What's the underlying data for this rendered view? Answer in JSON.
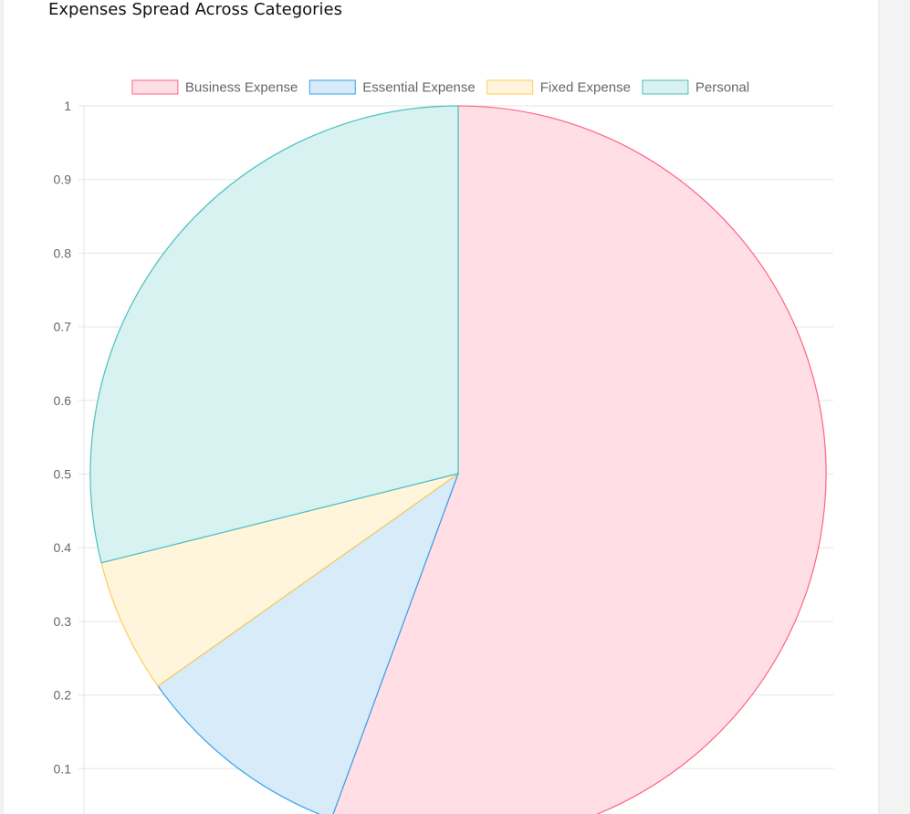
{
  "card": {
    "title": "Expenses Spread Across Categories"
  },
  "chart_data": {
    "type": "pie",
    "title": "Expenses Spread Across Categories",
    "legend_position": "top",
    "grid": true,
    "y_ticks": [
      "0.1",
      "0.2",
      "0.3",
      "0.4",
      "0.5",
      "0.6",
      "0.7",
      "0.8",
      "0.9",
      "1"
    ],
    "ylim": [
      0,
      1
    ],
    "categories": [
      "Business Expense",
      "Essential Expense",
      "Fixed Expense",
      "Personal"
    ],
    "values": [
      55.6,
      9.6,
      5.9,
      28.9
    ],
    "colors": {
      "Business Expense": {
        "fill": "#ffdfe5",
        "stroke": "#ff6384"
      },
      "Essential Expense": {
        "fill": "#d7ebf8",
        "stroke": "#36a2eb"
      },
      "Fixed Expense": {
        "fill": "#fff5dd",
        "stroke": "#ffcd56"
      },
      "Personal": {
        "fill": "#d8f1f1",
        "stroke": "#4bc0c0"
      }
    }
  }
}
